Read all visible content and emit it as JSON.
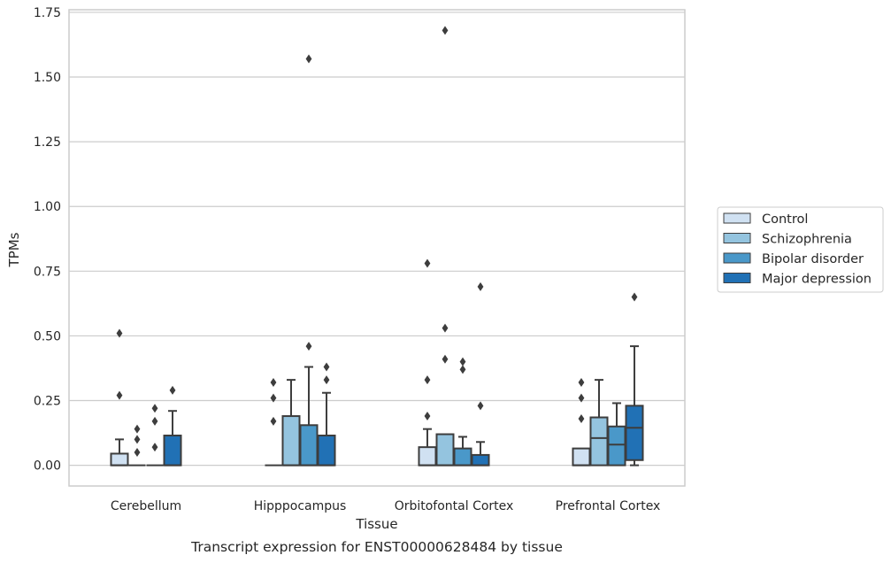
{
  "chart_data": {
    "type": "boxplot",
    "caption": "Transcript expression for ENST00000628484 by tissue",
    "xlabel": "Tissue",
    "ylabel": "TPMs",
    "ylim": [
      -0.08,
      1.76
    ],
    "yticks": [
      0.0,
      0.25,
      0.5,
      0.75,
      1.0,
      1.25,
      1.5,
      1.75
    ],
    "ytick_labels": [
      "0.00",
      "0.25",
      "0.50",
      "0.75",
      "1.00",
      "1.25",
      "1.50",
      "1.75"
    ],
    "grid": "horizontal",
    "legend_position": "right",
    "categories": [
      "Cerebellum",
      "Hipppocampus",
      "Orbitofontal Cortex",
      "Prefrontal Cortex"
    ],
    "series": [
      {
        "name": "Control",
        "color": "#d0e1f2",
        "boxes": [
          {
            "q1": 0.0,
            "median": 0.0,
            "q3": 0.045,
            "whisker_low": 0.0,
            "whisker_high": 0.1,
            "outliers": [
              0.27,
              0.51
            ]
          },
          {
            "q1": 0.0,
            "median": 0.0,
            "q3": 0.0,
            "whisker_low": 0.0,
            "whisker_high": 0.0,
            "outliers": [
              0.17,
              0.26,
              0.32
            ]
          },
          {
            "q1": 0.0,
            "median": 0.0,
            "q3": 0.07,
            "whisker_low": 0.0,
            "whisker_high": 0.14,
            "outliers": [
              0.19,
              0.33,
              0.78
            ]
          },
          {
            "q1": 0.0,
            "median": 0.0,
            "q3": 0.065,
            "whisker_low": 0.0,
            "whisker_high": 0.065,
            "outliers": [
              0.18,
              0.26,
              0.32
            ]
          }
        ]
      },
      {
        "name": "Schizophrenia",
        "color": "#94c4df",
        "boxes": [
          {
            "q1": 0.0,
            "median": 0.0,
            "q3": 0.0,
            "whisker_low": 0.0,
            "whisker_high": 0.0,
            "outliers": [
              0.05,
              0.1,
              0.14
            ]
          },
          {
            "q1": 0.0,
            "median": 0.0,
            "q3": 0.19,
            "whisker_low": 0.0,
            "whisker_high": 0.33,
            "outliers": []
          },
          {
            "q1": 0.0,
            "median": 0.0,
            "q3": 0.12,
            "whisker_low": 0.0,
            "whisker_high": 0.12,
            "outliers": [
              0.41,
              0.53,
              1.68
            ]
          },
          {
            "q1": 0.0,
            "median": 0.105,
            "q3": 0.185,
            "whisker_low": 0.0,
            "whisker_high": 0.33,
            "outliers": []
          }
        ]
      },
      {
        "name": "Bipolar disorder",
        "color": "#4a98c9",
        "boxes": [
          {
            "q1": 0.0,
            "median": 0.0,
            "q3": 0.0,
            "whisker_low": 0.0,
            "whisker_high": 0.0,
            "outliers": [
              0.07,
              0.17,
              0.22
            ]
          },
          {
            "q1": 0.0,
            "median": 0.0,
            "q3": 0.155,
            "whisker_low": 0.0,
            "whisker_high": 0.38,
            "outliers": [
              0.46,
              1.57
            ]
          },
          {
            "q1": 0.0,
            "median": 0.0,
            "q3": 0.065,
            "whisker_low": 0.0,
            "whisker_high": 0.11,
            "outliers": [
              0.37,
              0.4
            ]
          },
          {
            "q1": 0.0,
            "median": 0.08,
            "q3": 0.15,
            "whisker_low": 0.0,
            "whisker_high": 0.24,
            "outliers": []
          }
        ]
      },
      {
        "name": "Major depression",
        "color": "#2171b5",
        "boxes": [
          {
            "q1": 0.0,
            "median": 0.0,
            "q3": 0.115,
            "whisker_low": 0.0,
            "whisker_high": 0.21,
            "outliers": [
              0.29
            ]
          },
          {
            "q1": 0.0,
            "median": 0.0,
            "q3": 0.115,
            "whisker_low": 0.0,
            "whisker_high": 0.28,
            "outliers": [
              0.33,
              0.38
            ]
          },
          {
            "q1": 0.0,
            "median": 0.0,
            "q3": 0.04,
            "whisker_low": 0.0,
            "whisker_high": 0.09,
            "outliers": [
              0.23,
              0.69
            ]
          },
          {
            "q1": 0.02,
            "median": 0.145,
            "q3": 0.23,
            "whisker_low": 0.0,
            "whisker_high": 0.46,
            "outliers": [
              0.65
            ]
          }
        ]
      }
    ]
  }
}
